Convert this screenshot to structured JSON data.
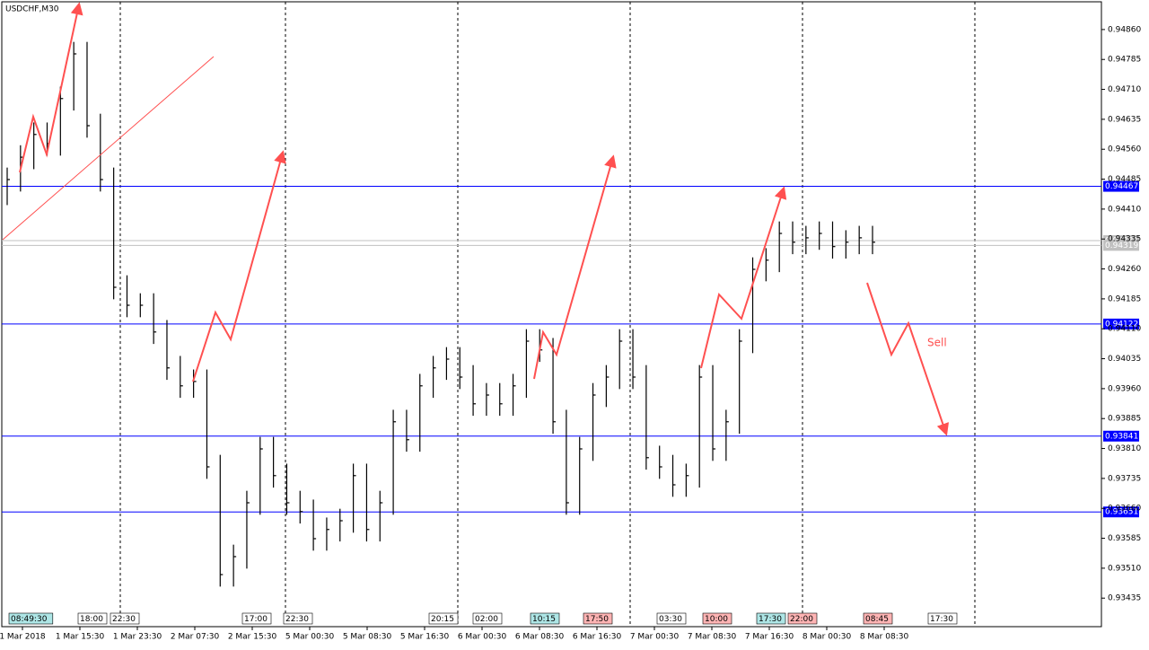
{
  "chart_data": {
    "type": "hlc",
    "title": "USDCHF,M30",
    "annotation": "Sell",
    "ylim": [
      0.93359,
      0.94934
    ],
    "yticks": [
      {
        "value": 0.9486,
        "label": "0.94860"
      },
      0.94785,
      {
        "value": 0.9471,
        "label": "0.94710"
      },
      0.94635,
      {
        "value": 0.9456,
        "label": "0.94560"
      },
      0.94485,
      {
        "value": 0.9441,
        "label": "0.94410"
      },
      0.94335,
      {
        "value": 0.9426,
        "label": "0.94260"
      },
      0.94185,
      {
        "value": 0.9411,
        "label": "0.94110"
      },
      0.94035,
      {
        "value": 0.9396,
        "label": "0.93960"
      },
      0.93885,
      {
        "value": 0.9381,
        "label": "0.93810"
      },
      0.93735,
      {
        "value": 0.9366,
        "label": "0.93660"
      },
      0.93585,
      {
        "value": 0.9351,
        "label": "0.93510"
      },
      0.93435
    ],
    "x_labels": [
      "1 Mar 2018",
      "1 Mar 15:30",
      "1 Mar 23:30",
      "2 Mar 07:30",
      "2 Mar 15:30",
      "5 Mar 00:30",
      "5 Mar 08:30",
      "5 Mar 16:30",
      "6 Mar 00:30",
      "6 Mar 08:30",
      "6 Mar 16:30",
      "7 Mar 00:30",
      "7 Mar 08:30",
      "7 Mar 16:30",
      "8 Mar 00:30",
      "8 Mar 08:30"
    ],
    "color": "#000000",
    "levels": [
      {
        "value": 0.94467,
        "color": "#0000ff"
      },
      {
        "value": 0.94122,
        "color": "#0000ff"
      },
      {
        "value": 0.93841,
        "color": "#0000ff"
      },
      {
        "value": 0.93651,
        "color": "#0000ff"
      },
      {
        "value": 0.94331,
        "color": "#c0c0c0"
      },
      {
        "value": 0.94319,
        "color": "#c0c0c0"
      }
    ],
    "high": [
      0.94514,
      0.9457,
      0.94627,
      0.94627,
      0.94717,
      0.94829,
      0.94829,
      0.94649,
      0.94514,
      0.94244,
      0.94199,
      0.94199,
      0.94132,
      0.94042,
      0.94008,
      0.94008,
      0.93794,
      0.93569,
      0.93704,
      0.93839,
      0.93839,
      0.93772,
      0.93704,
      0.93682,
      0.93637,
      0.93659,
      0.93772,
      0.93772,
      0.93704,
      0.93907,
      0.93907,
      0.93997,
      0.94042,
      0.94064,
      0.94064,
      0.94019,
      0.93974,
      0.93974,
      0.93997,
      0.94109,
      0.94109,
      0.94087,
      0.93907,
      0.93839,
      0.93974,
      0.94019,
      0.94109,
      0.94109,
      0.94019,
      0.93817,
      0.93794,
      0.93772,
      0.94019,
      0.94019,
      0.93907,
      0.94109,
      0.94289,
      0.94312,
      0.94379,
      0.94379,
      0.94368,
      0.94379,
      0.94379,
      0.94357,
      0.94368,
      0.94368
    ],
    "low": [
      0.9442,
      0.94454,
      0.9451,
      0.94544,
      0.94544,
      0.94657,
      0.94589,
      0.94454,
      0.94184,
      0.94139,
      0.94139,
      0.94072,
      0.93982,
      0.93937,
      0.93937,
      0.93734,
      0.93464,
      0.93464,
      0.93509,
      0.93644,
      0.93712,
      0.93644,
      0.93622,
      0.93554,
      0.93554,
      0.93577,
      0.93599,
      0.93577,
      0.93577,
      0.93644,
      0.93802,
      0.93802,
      0.93937,
      0.93982,
      0.93959,
      0.93892,
      0.93892,
      0.93892,
      0.93892,
      0.93937,
      0.94027,
      0.93847,
      0.93644,
      0.93644,
      0.93779,
      0.93914,
      0.93959,
      0.93959,
      0.93757,
      0.93734,
      0.93689,
      0.93689,
      0.93712,
      0.93779,
      0.93779,
      0.93847,
      0.94049,
      0.94229,
      0.94252,
      0.94297,
      0.94297,
      0.94308,
      0.94286,
      0.94286,
      0.94297,
      0.94297
    ],
    "close": [
      0.94484,
      0.9454,
      0.94597,
      0.94574,
      0.94687,
      0.94799,
      0.94619,
      0.94484,
      0.94214,
      0.94169,
      0.94169,
      0.94102,
      0.94012,
      0.93967,
      0.93978,
      0.93764,
      0.93494,
      0.93539,
      0.93674,
      0.93809,
      0.93742,
      0.93674,
      0.93652,
      0.93584,
      0.93607,
      0.93629,
      0.93742,
      0.93607,
      0.93674,
      0.93877,
      0.93832,
      0.93967,
      0.94012,
      0.94034,
      0.93989,
      0.93922,
      0.93944,
      0.93922,
      0.93967,
      0.94079,
      0.94057,
      0.93877,
      0.93674,
      0.93809,
      0.93944,
      0.93989,
      0.94079,
      0.93989,
      0.93787,
      0.93764,
      0.93719,
      0.93742,
      0.93989,
      0.93809,
      0.93877,
      0.94079,
      0.94259,
      0.94282,
      0.94349,
      0.94327,
      0.94338,
      0.94349,
      0.94316,
      0.94327,
      0.94338,
      0.94327
    ],
    "time_markers": [
      {
        "text": "08:49:30",
        "bg": "#aee6e6"
      },
      {
        "text": "18:00",
        "bg": "#ffffff"
      },
      {
        "text": "22:30",
        "bg": "#ffffff"
      },
      {
        "text": "17:00",
        "bg": "#ffffff"
      },
      {
        "text": "22:30",
        "bg": "#ffffff"
      },
      {
        "text": "20:15",
        "bg": "#ffffff"
      },
      {
        "text": "02:00",
        "bg": "#ffffff"
      },
      {
        "text": "10:15",
        "bg": "#aee6e6"
      },
      {
        "text": "17:50",
        "bg": "#ffb4b4"
      },
      {
        "text": "03:30",
        "bg": "#ffffff"
      },
      {
        "text": "10:00",
        "bg": "#ffb4b4"
      },
      {
        "text": "17:30",
        "bg": "#aee6e6"
      },
      {
        "text": "22:00",
        "bg": "#ffb4b4"
      },
      {
        "text": "08:45",
        "bg": "#ffb4b4"
      },
      {
        "text": "17:30",
        "bg": "#ffffff"
      }
    ]
  }
}
